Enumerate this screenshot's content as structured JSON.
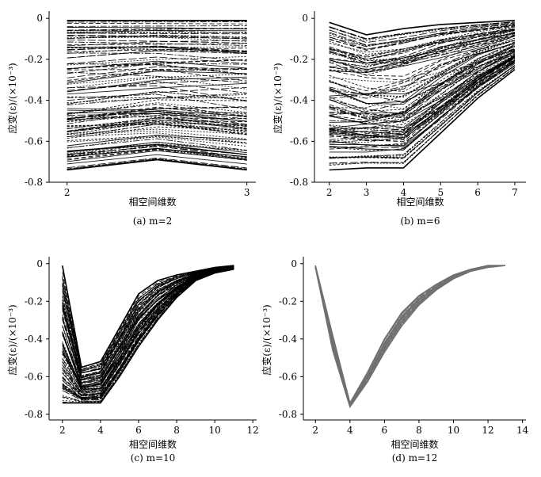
{
  "figure": {
    "ylabel": "应变(ε)/(×10⁻³)",
    "xlabel": "相空间维数"
  },
  "chart_data": [
    {
      "id": "a",
      "type": "line",
      "caption": "(a) m=2",
      "xlabel": "相空间维数",
      "ylabel": "应变(ε)/(×10⁻³)",
      "xlim": [
        1.9,
        3.05
      ],
      "ylim": [
        -0.8,
        0.02
      ],
      "xticks": [
        "2",
        "3"
      ],
      "xtick_values": [
        2,
        3
      ],
      "yticks": [
        "0",
        "-0.2",
        "-0.4",
        "-0.6",
        "-0.8"
      ],
      "ytick_values": [
        0,
        -0.2,
        -0.4,
        -0.6,
        -0.8
      ],
      "color": "#000000",
      "x": [
        2,
        2.5,
        3
      ],
      "envelope_upper": [
        -0.01,
        -0.01,
        -0.01
      ],
      "envelope_lower": [
        -0.74,
        -0.69,
        -0.74
      ],
      "n_lines": 120
    },
    {
      "id": "b",
      "type": "line",
      "caption": "(b) m=6",
      "xlabel": "相空间维数",
      "ylabel": "应变(ε)/(×10⁻³)",
      "xlim": [
        1.6,
        7.3
      ],
      "ylim": [
        -0.8,
        0.02
      ],
      "xticks": [
        "2",
        "3",
        "4",
        "5",
        "6",
        "7"
      ],
      "xtick_values": [
        2,
        3,
        4,
        5,
        6,
        7
      ],
      "yticks": [
        "0",
        "-0.2",
        "-0.4",
        "-0.6",
        "-0.8"
      ],
      "ytick_values": [
        0,
        -0.2,
        -0.4,
        -0.6,
        -0.8
      ],
      "color": "#000000",
      "x": [
        2,
        3,
        4,
        5,
        6,
        7
      ],
      "envelope_upper": [
        -0.02,
        -0.08,
        -0.05,
        -0.03,
        -0.02,
        -0.01
      ],
      "envelope_lower": [
        -0.74,
        -0.73,
        -0.73,
        -0.56,
        -0.39,
        -0.25
      ],
      "n_lines": 110
    },
    {
      "id": "c",
      "type": "line",
      "caption": "(c) m=10",
      "xlabel": "相空间维数",
      "ylabel": "应变(ε)/(×10⁻³)",
      "xlim": [
        1.3,
        12.2
      ],
      "ylim": [
        -0.83,
        0.02
      ],
      "xticks": [
        "2",
        "4",
        "6",
        "8",
        "10",
        "12"
      ],
      "xtick_values": [
        2,
        4,
        6,
        8,
        10,
        12
      ],
      "yticks": [
        "0",
        "-0.2",
        "-0.4",
        "-0.6",
        "-0.8"
      ],
      "ytick_values": [
        0,
        -0.2,
        -0.4,
        -0.6,
        -0.8
      ],
      "color": "#000000",
      "x": [
        2,
        3,
        4,
        5,
        6,
        7,
        8,
        9,
        10,
        11
      ],
      "envelope_upper": [
        -0.01,
        -0.55,
        -0.52,
        -0.34,
        -0.16,
        -0.09,
        -0.06,
        -0.04,
        -0.02,
        -0.01
      ],
      "envelope_lower": [
        -0.74,
        -0.74,
        -0.74,
        -0.6,
        -0.44,
        -0.3,
        -0.18,
        -0.09,
        -0.05,
        -0.03
      ],
      "n_lines": 90
    },
    {
      "id": "d",
      "type": "line",
      "caption": "(d) m=12",
      "xlabel": "相空间维数",
      "ylabel": "应变(ε)/(×10⁻³)",
      "xlim": [
        1.3,
        14.2
      ],
      "ylim": [
        -0.83,
        0.02
      ],
      "xticks": [
        "2",
        "4",
        "6",
        "8",
        "10",
        "12",
        "14"
      ],
      "xtick_values": [
        2,
        4,
        6,
        8,
        10,
        12,
        14
      ],
      "yticks": [
        "0",
        "-0.2",
        "-0.4",
        "-0.6",
        "-0.8"
      ],
      "ytick_values": [
        0,
        -0.2,
        -0.4,
        -0.6,
        -0.8
      ],
      "color": "#707070",
      "x": [
        2,
        3,
        4,
        5,
        6,
        7,
        8,
        9,
        10,
        11,
        12,
        13
      ],
      "envelope_upper": [
        -0.01,
        -0.38,
        -0.74,
        -0.58,
        -0.4,
        -0.26,
        -0.17,
        -0.11,
        -0.06,
        -0.03,
        -0.01,
        -0.01
      ],
      "envelope_lower": [
        -0.02,
        -0.46,
        -0.76,
        -0.63,
        -0.47,
        -0.33,
        -0.22,
        -0.14,
        -0.08,
        -0.04,
        -0.02,
        -0.01
      ],
      "n_lines": 45
    }
  ]
}
